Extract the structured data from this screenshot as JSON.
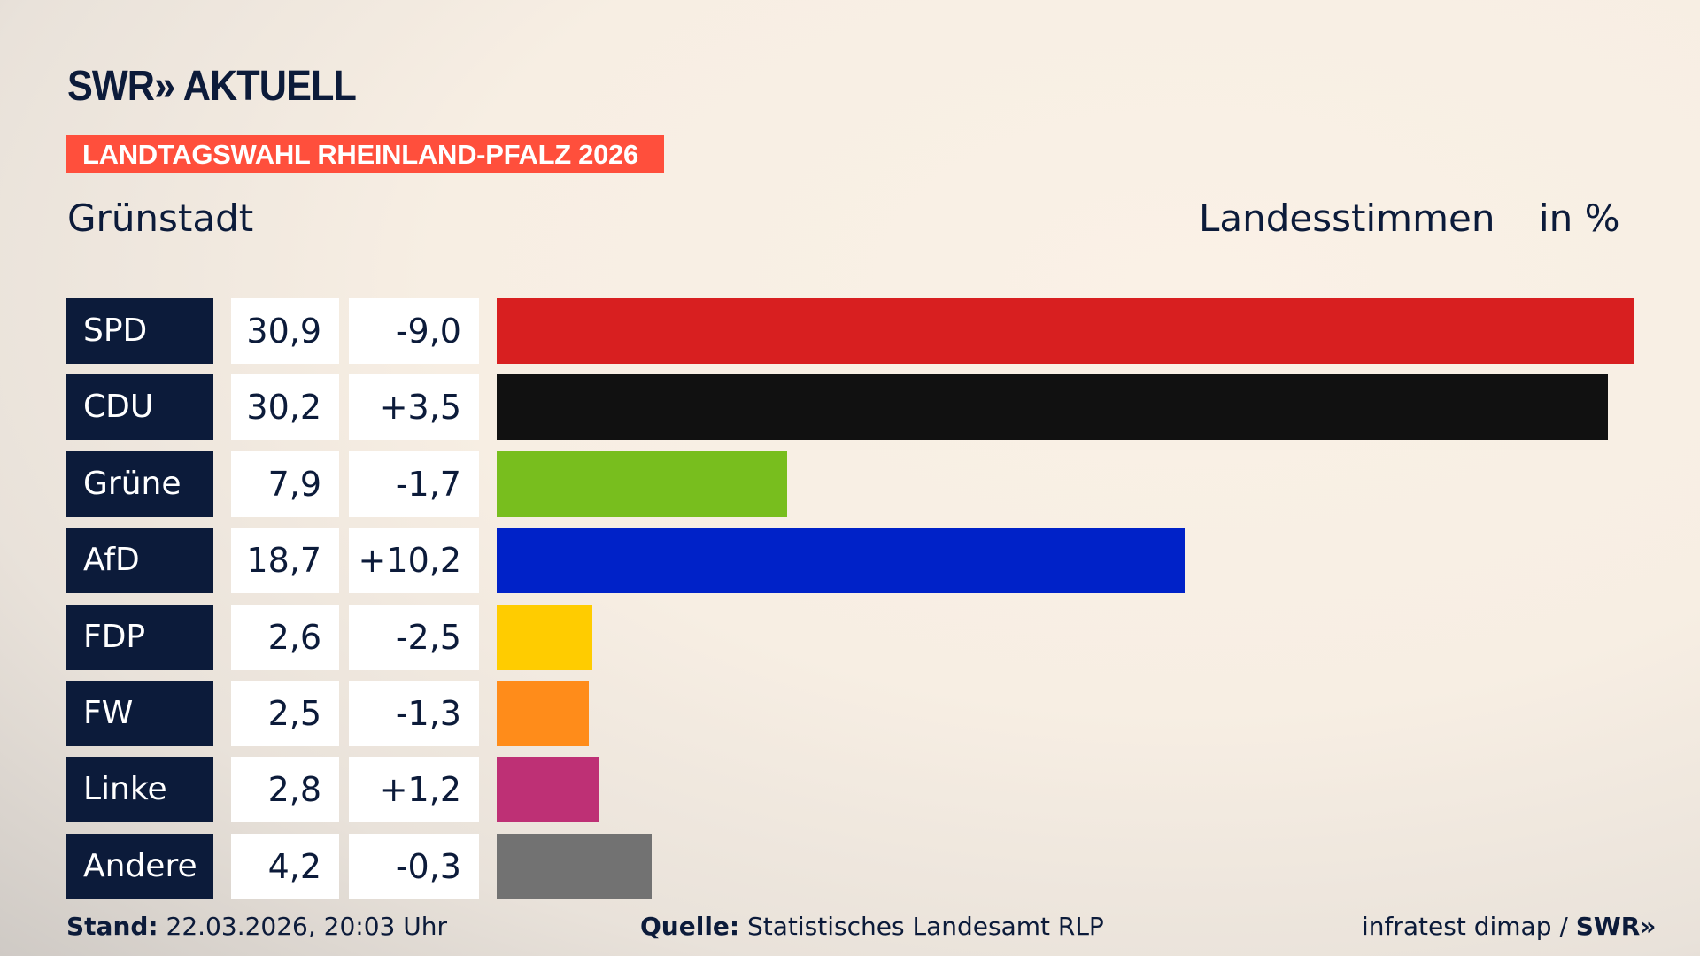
{
  "logo": "SWR» AKTUELL",
  "banner": "LANDTAGSWAHL RHEINLAND-PFALZ 2026",
  "place": "Grünstadt",
  "measure": "Landesstimmen",
  "unit": "in %",
  "chart_data": {
    "type": "bar",
    "orientation": "horizontal",
    "categories": [
      "SPD",
      "CDU",
      "Grüne",
      "AfD",
      "FDP",
      "FW",
      "Linke",
      "Andere"
    ],
    "values": [
      30.9,
      30.2,
      7.9,
      18.7,
      2.6,
      2.5,
      2.8,
      4.2
    ],
    "value_labels": [
      "30,9",
      "30,2",
      "7,9",
      "18,7",
      "2,6",
      "2,5",
      "2,8",
      "4,2"
    ],
    "diff_labels": [
      "-9,0",
      "+3,5",
      "-1,7",
      "+10,2",
      "-2,5",
      "-1,3",
      "+1,2",
      "-0,3"
    ],
    "colors": [
      "#d81f20",
      "#111111",
      "#78be1e",
      "#0022c8",
      "#ffcc00",
      "#ff8c1a",
      "#be3075",
      "#727272"
    ]
  },
  "footer": {
    "stand_label": "Stand:",
    "stand_value": "22.03.2026, 20:03 Uhr",
    "quelle_label": "Quelle:",
    "quelle_value": "Statistisches Landesamt RLP",
    "credit": "infratest dimap / ",
    "credit_logo": "SWR»"
  }
}
